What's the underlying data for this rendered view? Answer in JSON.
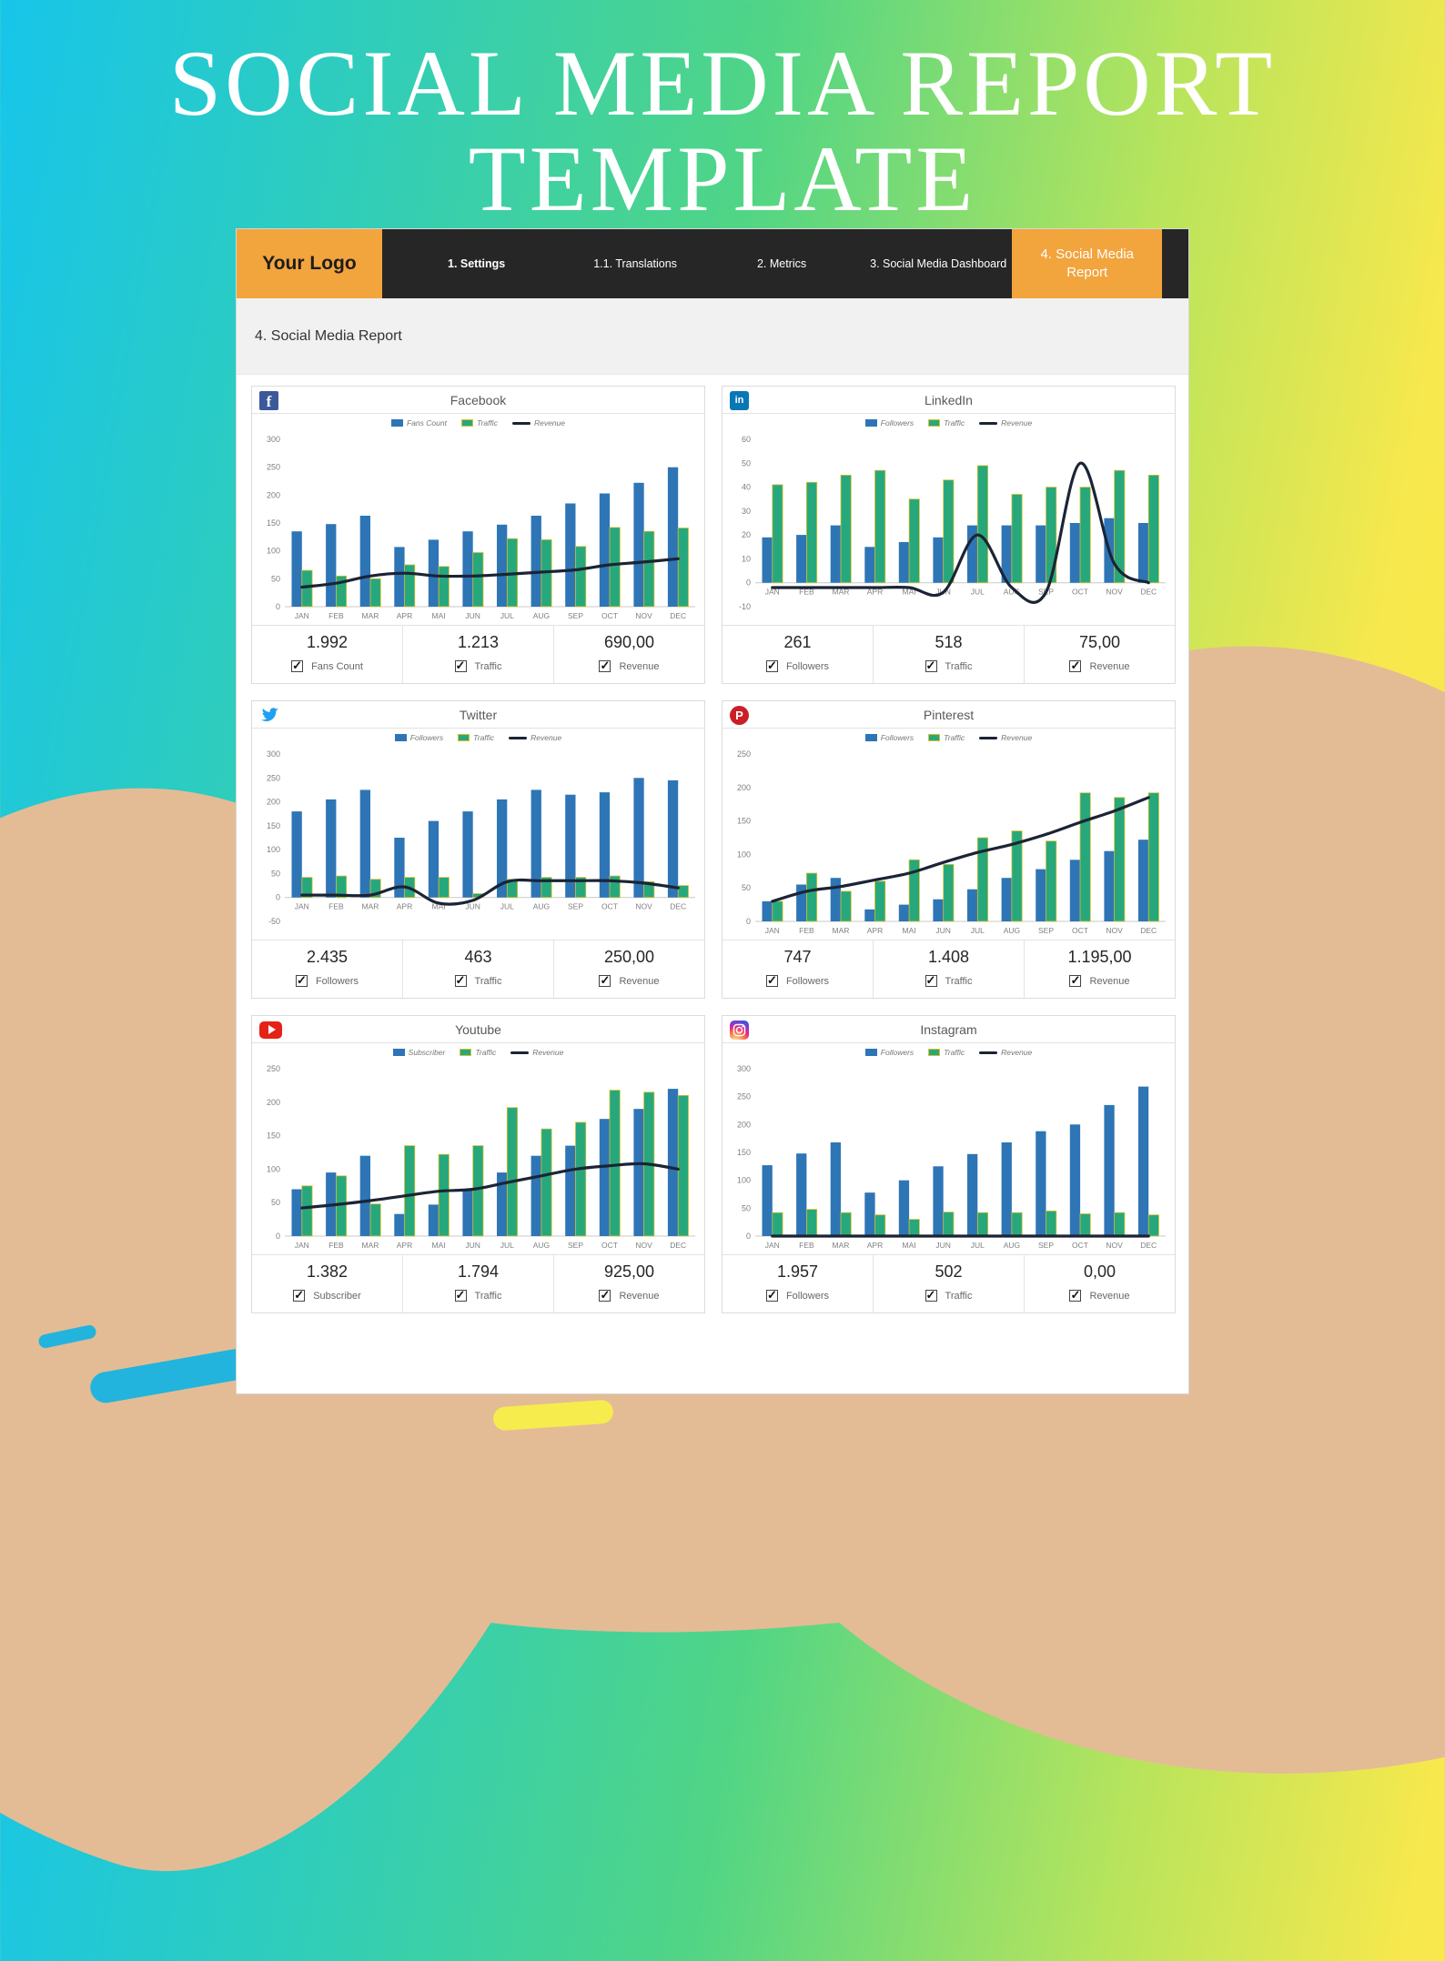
{
  "page": {
    "title_line1": "SOCIAL MEDIA REPORT",
    "title_line2": "TEMPLATE"
  },
  "nav": {
    "logo": "Your Logo",
    "items": [
      {
        "label": "1. Settings"
      },
      {
        "label": "1.1. Translations"
      },
      {
        "label": "2. Metrics"
      },
      {
        "label": "3. Social Media Dashboard"
      },
      {
        "label": "4. Social Media Report"
      }
    ]
  },
  "section_title": "4. Social Media Report",
  "colors": {
    "bar_blue": "#2e75b6",
    "bar_green": "#27a87c",
    "line_dark": "#1b2435",
    "accent_orange": "#f2a43d"
  },
  "panels": [
    {
      "id": "facebook",
      "platform": "Facebook",
      "legend": [
        "Fans Count",
        "Traffic",
        "Revenue"
      ],
      "stats": [
        {
          "value": "1.992",
          "label": "Fans Count",
          "checked": true
        },
        {
          "value": "1.213",
          "label": "Traffic",
          "checked": true
        },
        {
          "value": "690,00",
          "label": "Revenue",
          "checked": true
        }
      ]
    },
    {
      "id": "linkedin",
      "platform": "LinkedIn",
      "legend": [
        "Followers",
        "Traffic",
        "Revenue"
      ],
      "stats": [
        {
          "value": "261",
          "label": "Followers",
          "checked": true
        },
        {
          "value": "518",
          "label": "Traffic",
          "checked": true
        },
        {
          "value": "75,00",
          "label": "Revenue",
          "checked": true
        }
      ]
    },
    {
      "id": "twitter",
      "platform": "Twitter",
      "legend": [
        "Followers",
        "Traffic",
        "Revenue"
      ],
      "stats": [
        {
          "value": "2.435",
          "label": "Followers",
          "checked": true
        },
        {
          "value": "463",
          "label": "Traffic",
          "checked": true
        },
        {
          "value": "250,00",
          "label": "Revenue",
          "checked": true
        }
      ]
    },
    {
      "id": "pinterest",
      "platform": "Pinterest",
      "legend": [
        "Followers",
        "Traffic",
        "Revenue"
      ],
      "stats": [
        {
          "value": "747",
          "label": "Followers",
          "checked": true
        },
        {
          "value": "1.408",
          "label": "Traffic",
          "checked": true
        },
        {
          "value": "1.195,00",
          "label": "Revenue",
          "checked": true
        }
      ]
    },
    {
      "id": "youtube",
      "platform": "Youtube",
      "legend": [
        "Subscriber",
        "Traffic",
        "Revenue"
      ],
      "stats": [
        {
          "value": "1.382",
          "label": "Subscriber",
          "checked": true
        },
        {
          "value": "1.794",
          "label": "Traffic",
          "checked": true
        },
        {
          "value": "925,00",
          "label": "Revenue",
          "checked": true
        }
      ]
    },
    {
      "id": "instagram",
      "platform": "Instagram",
      "legend": [
        "Followers",
        "Traffic",
        "Revenue"
      ],
      "stats": [
        {
          "value": "1.957",
          "label": "Followers",
          "checked": true
        },
        {
          "value": "502",
          "label": "Traffic",
          "checked": true
        },
        {
          "value": "0,00",
          "label": "Revenue",
          "checked": true
        }
      ]
    }
  ],
  "chart_data": [
    {
      "type": "bar",
      "title": "Facebook",
      "categories": [
        "JAN",
        "FEB",
        "MAR",
        "APR",
        "MAI",
        "JUN",
        "JUL",
        "AUG",
        "SEP",
        "OCT",
        "NOV",
        "DEC"
      ],
      "series": [
        {
          "name": "Fans Count",
          "kind": "bar",
          "color": "#2e75b6",
          "values": [
            135,
            148,
            163,
            107,
            120,
            135,
            147,
            163,
            185,
            203,
            222,
            250
          ]
        },
        {
          "name": "Traffic",
          "kind": "bar",
          "color": "#27a87c",
          "values": [
            65,
            55,
            50,
            75,
            72,
            97,
            122,
            120,
            108,
            142,
            135,
            141
          ]
        },
        {
          "name": "Revenue",
          "kind": "line",
          "color": "#1b2435",
          "values": [
            35,
            42,
            55,
            60,
            55,
            55,
            58,
            62,
            66,
            75,
            80,
            86
          ]
        }
      ],
      "ylim": [
        0,
        300
      ],
      "yticks": [
        0,
        50,
        100,
        150,
        200,
        250,
        300
      ]
    },
    {
      "type": "bar",
      "title": "LinkedIn",
      "categories": [
        "JAN",
        "FEB",
        "MAR",
        "APR",
        "MAI",
        "JUN",
        "JUL",
        "AUG",
        "SEP",
        "OCT",
        "NOV",
        "DEC"
      ],
      "series": [
        {
          "name": "Followers",
          "kind": "bar",
          "color": "#2e75b6",
          "values": [
            19,
            20,
            24,
            15,
            17,
            19,
            24,
            24,
            24,
            25,
            27,
            25
          ]
        },
        {
          "name": "Traffic",
          "kind": "bar",
          "color": "#27a87c",
          "values": [
            41,
            42,
            45,
            47,
            35,
            43,
            49,
            37,
            40,
            40,
            47,
            45
          ]
        },
        {
          "name": "Revenue",
          "kind": "line",
          "color": "#1b2435",
          "values": [
            -2,
            -2,
            -2,
            -2,
            -2,
            -4,
            20,
            -2,
            -4,
            50,
            8,
            0
          ]
        }
      ],
      "ylim": [
        -10,
        60
      ],
      "yticks": [
        -10,
        0,
        10,
        20,
        30,
        40,
        50,
        60
      ]
    },
    {
      "type": "bar",
      "title": "Twitter",
      "categories": [
        "JAN",
        "FEB",
        "MAR",
        "APR",
        "MAI",
        "JUN",
        "JUL",
        "AUG",
        "SEP",
        "OCT",
        "NOV",
        "DEC"
      ],
      "series": [
        {
          "name": "Followers",
          "kind": "bar",
          "color": "#2e75b6",
          "values": [
            180,
            205,
            225,
            125,
            160,
            180,
            205,
            225,
            215,
            220,
            250,
            245
          ]
        },
        {
          "name": "Traffic",
          "kind": "bar",
          "color": "#27a87c",
          "values": [
            42,
            45,
            38,
            42,
            42,
            8,
            38,
            42,
            42,
            45,
            33,
            25
          ]
        },
        {
          "name": "Revenue",
          "kind": "line",
          "color": "#1b2435",
          "values": [
            5,
            5,
            5,
            22,
            -12,
            -6,
            33,
            35,
            35,
            35,
            30,
            20
          ]
        }
      ],
      "ylim": [
        -50,
        300
      ],
      "yticks": [
        -50,
        0,
        50,
        100,
        150,
        200,
        250,
        300
      ]
    },
    {
      "type": "bar",
      "title": "Pinterest",
      "categories": [
        "JAN",
        "FEB",
        "MAR",
        "APR",
        "MAI",
        "JUN",
        "JUL",
        "AUG",
        "SEP",
        "OCT",
        "NOV",
        "DEC"
      ],
      "series": [
        {
          "name": "Followers",
          "kind": "bar",
          "color": "#2e75b6",
          "values": [
            30,
            55,
            65,
            18,
            25,
            33,
            48,
            65,
            78,
            92,
            105,
            122
          ]
        },
        {
          "name": "Traffic",
          "kind": "bar",
          "color": "#27a87c",
          "values": [
            30,
            72,
            45,
            60,
            92,
            85,
            125,
            135,
            120,
            192,
            185,
            192
          ]
        },
        {
          "name": "Revenue",
          "kind": "line",
          "color": "#1b2435",
          "values": [
            30,
            45,
            52,
            62,
            72,
            88,
            103,
            115,
            130,
            148,
            165,
            185
          ]
        }
      ],
      "ylim": [
        0,
        250
      ],
      "yticks": [
        0,
        50,
        100,
        150,
        200,
        250
      ]
    },
    {
      "type": "bar",
      "title": "Youtube",
      "categories": [
        "JAN",
        "FEB",
        "MAR",
        "APR",
        "MAI",
        "JUN",
        "JUL",
        "AUG",
        "SEP",
        "OCT",
        "NOV",
        "DEC"
      ],
      "series": [
        {
          "name": "Subscriber",
          "kind": "bar",
          "color": "#2e75b6",
          "values": [
            70,
            95,
            120,
            33,
            47,
            70,
            95,
            120,
            135,
            175,
            190,
            220
          ]
        },
        {
          "name": "Traffic",
          "kind": "bar",
          "color": "#27a87c",
          "values": [
            75,
            90,
            48,
            135,
            122,
            135,
            192,
            160,
            170,
            218,
            215,
            210
          ]
        },
        {
          "name": "Revenue",
          "kind": "line",
          "color": "#1b2435",
          "values": [
            42,
            47,
            53,
            60,
            67,
            70,
            80,
            90,
            100,
            105,
            108,
            100
          ]
        }
      ],
      "ylim": [
        0,
        250
      ],
      "yticks": [
        0,
        50,
        100,
        150,
        200,
        250
      ]
    },
    {
      "type": "bar",
      "title": "Instagram",
      "categories": [
        "JAN",
        "FEB",
        "MAR",
        "APR",
        "MAI",
        "JUN",
        "JUL",
        "AUG",
        "SEP",
        "OCT",
        "NOV",
        "DEC"
      ],
      "series": [
        {
          "name": "Followers",
          "kind": "bar",
          "color": "#2e75b6",
          "values": [
            127,
            148,
            168,
            78,
            100,
            125,
            147,
            168,
            188,
            200,
            235,
            268
          ]
        },
        {
          "name": "Traffic",
          "kind": "bar",
          "color": "#27a87c",
          "values": [
            42,
            48,
            42,
            38,
            30,
            43,
            42,
            42,
            45,
            40,
            42,
            38
          ]
        },
        {
          "name": "Revenue",
          "kind": "line",
          "color": "#1b2435",
          "values": [
            0,
            0,
            0,
            0,
            0,
            0,
            0,
            0,
            0,
            0,
            0,
            0
          ]
        }
      ],
      "ylim": [
        0,
        300
      ],
      "yticks": [
        0,
        50,
        100,
        150,
        200,
        250,
        300
      ]
    }
  ]
}
